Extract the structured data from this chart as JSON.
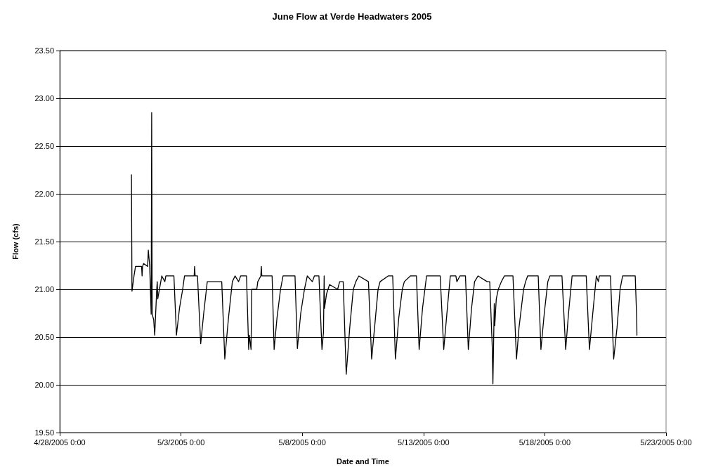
{
  "chart_data": {
    "type": "line",
    "title": "June Flow at Verde Headwaters 2005",
    "xlabel": "Date and Time",
    "ylabel": "Flow (cfs)",
    "xlim": [
      "2005-04-28T00:00",
      "2005-05-23T00:00"
    ],
    "xticks": [
      {
        "value": "2005-04-28T00:00",
        "label": "4/28/2005 0:00"
      },
      {
        "value": "2005-05-03T00:00",
        "label": "5/3/2005 0:00"
      },
      {
        "value": "2005-05-08T00:00",
        "label": "5/8/2005 0:00"
      },
      {
        "value": "2005-05-13T00:00",
        "label": "5/13/2005 0:00"
      },
      {
        "value": "2005-05-18T00:00",
        "label": "5/18/2005 0:00"
      },
      {
        "value": "2005-05-23T00:00",
        "label": "5/23/2005 0:00"
      }
    ],
    "ylim": [
      19.5,
      23.5
    ],
    "yticks": [
      {
        "value": 19.5,
        "label": "19.50"
      },
      {
        "value": 20,
        "label": "20.00"
      },
      {
        "value": 20.5,
        "label": "20.50"
      },
      {
        "value": 21,
        "label": "21.00"
      },
      {
        "value": 21.5,
        "label": "21.50"
      },
      {
        "value": 22,
        "label": "22.00"
      },
      {
        "value": 22.5,
        "label": "22.50"
      },
      {
        "value": 23,
        "label": "23.00"
      },
      {
        "value": 23.5,
        "label": "23.50"
      }
    ],
    "grid": "y",
    "marker": "none",
    "line_style": "solid",
    "series": [
      {
        "color": "#000000",
        "x": [
          "2005-04-30T23:00",
          "2005-04-30T23:30",
          "2005-05-01T01:30",
          "2005-05-01T03:00",
          "2005-05-01T09:00",
          "2005-05-01T09:30",
          "2005-05-01T10:00",
          "2005-05-01T11:00",
          "2005-05-01T15:00",
          "2005-05-01T15:40",
          "2005-05-01T17:00",
          "2005-05-01T18:30",
          "2005-05-01T19:00",
          "2005-05-01T19:30",
          "2005-05-01T21:00",
          "2005-05-01T22:00",
          "2005-05-02T00:00",
          "2005-05-02T00:30",
          "2005-05-02T01:00",
          "2005-05-02T04:00",
          "2005-05-02T05:00",
          "2005-05-02T08:00",
          "2005-05-02T09:00",
          "2005-05-02T17:00",
          "2005-05-02T19:30",
          "2005-05-02T22:30",
          "2005-05-03T01:40",
          "2005-05-03T03:30",
          "2005-05-03T13:00",
          "2005-05-03T13:30",
          "2005-05-03T14:00",
          "2005-05-03T16:20",
          "2005-05-03T19:30",
          "2005-05-03T22:30",
          "2005-05-04T02:00",
          "2005-05-04T16:20",
          "2005-05-04T19:20",
          "2005-05-04T23:00",
          "2005-05-05T02:50",
          "2005-05-05T05:30",
          "2005-05-05T09:00",
          "2005-05-05T11:00",
          "2005-05-05T16:50",
          "2005-05-05T19:00",
          "2005-05-05T19:40",
          "2005-05-05T21:20",
          "2005-05-05T22:00",
          "2005-05-06T03:00",
          "2005-05-06T04:00",
          "2005-05-06T07:00",
          "2005-05-06T07:30",
          "2005-05-06T08:00",
          "2005-05-06T18:10",
          "2005-05-06T20:10",
          "2005-05-06T23:00",
          "2005-05-07T02:30",
          "2005-05-07T05:00",
          "2005-05-07T16:50",
          "2005-05-07T19:10",
          "2005-05-07T22:30",
          "2005-05-08T02:10",
          "2005-05-08T05:00",
          "2005-05-08T10:00",
          "2005-05-08T12:00",
          "2005-05-08T16:30",
          "2005-05-08T19:30",
          "2005-05-08T21:00",
          "2005-05-08T21:40",
          "2005-05-08T22:00",
          "2005-05-09T00:00",
          "2005-05-09T01:30",
          "2005-05-09T03:00",
          "2005-05-09T11:00",
          "2005-05-09T13:00",
          "2005-05-09T16:30",
          "2005-05-09T19:30",
          "2005-05-09T23:00",
          "2005-05-10T02:30",
          "2005-05-10T05:00",
          "2005-05-10T08:00",
          "2005-05-10T17:30",
          "2005-05-10T20:40",
          "2005-05-11T00:00",
          "2005-05-11T03:00",
          "2005-05-11T05:00",
          "2005-05-11T13:00",
          "2005-05-11T17:30",
          "2005-05-11T20:10",
          "2005-05-11T23:30",
          "2005-05-12T03:00",
          "2005-05-12T05:00",
          "2005-05-12T11:00",
          "2005-05-12T17:00",
          "2005-05-12T19:40",
          "2005-05-12T23:00",
          "2005-05-13T03:00",
          "2005-05-13T16:30",
          "2005-05-13T20:00",
          "2005-05-14T00:00",
          "2005-05-14T02:30",
          "2005-05-14T08:00",
          "2005-05-14T09:00",
          "2005-05-14T12:00",
          "2005-05-14T17:30",
          "2005-05-14T20:20",
          "2005-05-14T23:30",
          "2005-05-15T02:30",
          "2005-05-15T06:00",
          "2005-05-15T15:00",
          "2005-05-15T17:30",
          "2005-05-15T20:00",
          "2005-05-15T20:40",
          "2005-05-15T22:00",
          "2005-05-15T22:30",
          "2005-05-16T00:00",
          "2005-05-16T02:00",
          "2005-05-16T05:00",
          "2005-05-16T08:00",
          "2005-05-16T16:30",
          "2005-05-16T20:00",
          "2005-05-16T22:30",
          "2005-05-17T03:00",
          "2005-05-17T05:00",
          "2005-05-17T07:00",
          "2005-05-17T17:30",
          "2005-05-17T20:10",
          "2005-05-17T23:30",
          "2005-05-18T03:00",
          "2005-05-18T05:00",
          "2005-05-18T17:00",
          "2005-05-18T20:40",
          "2005-05-18T23:30",
          "2005-05-19T03:00",
          "2005-05-19T17:00",
          "2005-05-19T20:10",
          "2005-05-19T23:30",
          "2005-05-20T03:00",
          "2005-05-20T05:00",
          "2005-05-20T06:00",
          "2005-05-20T17:00",
          "2005-05-20T20:10",
          "2005-05-20T23:30",
          "2005-05-21T02:30",
          "2005-05-21T05:00",
          "2005-05-21T17:30",
          "2005-05-21T19:00",
          "2005-05-21T19:10"
        ],
        "values": [
          22.2,
          20.98,
          21.14,
          21.24,
          21.24,
          21.14,
          21.24,
          21.27,
          21.24,
          21.41,
          21.25,
          20.74,
          22.85,
          20.74,
          20.68,
          20.52,
          21.0,
          21.08,
          20.9,
          21.08,
          21.14,
          21.08,
          21.14,
          21.14,
          20.52,
          20.8,
          21.0,
          21.14,
          21.14,
          21.24,
          21.14,
          21.14,
          20.43,
          20.75,
          21.08,
          21.08,
          20.27,
          20.7,
          21.08,
          21.14,
          21.08,
          21.14,
          21.14,
          20.37,
          20.52,
          20.37,
          21.0,
          21.0,
          21.08,
          21.14,
          21.24,
          21.14,
          21.14,
          20.37,
          20.7,
          21.0,
          21.14,
          21.14,
          20.38,
          20.75,
          21.0,
          21.14,
          21.08,
          21.14,
          21.14,
          20.37,
          20.55,
          21.14,
          20.8,
          20.95,
          21.0,
          21.05,
          21.0,
          21.08,
          21.08,
          20.11,
          20.6,
          21.0,
          21.08,
          21.14,
          21.08,
          20.27,
          20.65,
          21.0,
          21.08,
          21.14,
          21.14,
          20.27,
          20.7,
          21.0,
          21.08,
          21.14,
          21.14,
          20.37,
          20.8,
          21.14,
          21.14,
          20.37,
          20.85,
          21.14,
          21.14,
          21.08,
          21.14,
          21.14,
          20.37,
          20.8,
          21.08,
          21.14,
          21.08,
          21.08,
          20.4,
          20.01,
          20.85,
          20.62,
          20.9,
          21.0,
          21.08,
          21.14,
          21.14,
          20.27,
          20.6,
          21.0,
          21.08,
          21.14,
          21.14,
          20.37,
          20.75,
          21.08,
          21.14,
          21.14,
          20.37,
          20.75,
          21.14,
          21.14,
          20.37,
          20.75,
          21.14,
          21.08,
          21.14,
          21.14,
          20.27,
          20.6,
          21.0,
          21.14,
          21.14,
          20.68,
          20.52
        ]
      }
    ]
  }
}
